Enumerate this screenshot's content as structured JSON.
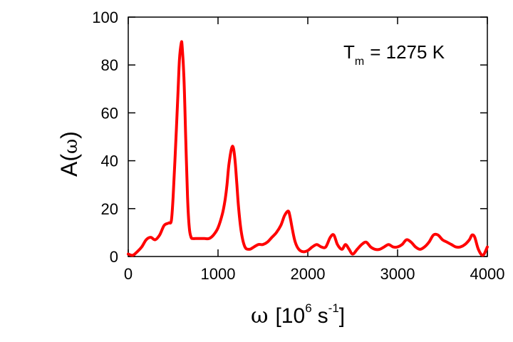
{
  "chart_data": {
    "type": "line",
    "title": "",
    "xlabel": {
      "symbol": "ω",
      "text_open": "[10",
      "superscript": "6",
      "unit": "s",
      "unit_superscript": "-1",
      "text_close": "]"
    },
    "ylabel": {
      "main": "A(",
      "symbol": "ω",
      "close": ")"
    },
    "annotation": {
      "main": "T",
      "subscript": "m",
      "rest": "= 1275 K"
    },
    "xlim": [
      0,
      4000
    ],
    "ylim": [
      0,
      100
    ],
    "xticks": [
      "0",
      "1000",
      "2000",
      "3000",
      "4000"
    ],
    "yticks": [
      "0",
      "20",
      "40",
      "60",
      "80",
      "100"
    ],
    "grid": false,
    "series": [
      {
        "color": "#ff0000",
        "x": [
          0,
          50,
          100,
          150,
          200,
          250,
          300,
          350,
          400,
          450,
          480,
          500,
          520,
          550,
          570,
          590,
          600,
          620,
          640,
          660,
          680,
          700,
          720,
          750,
          800,
          850,
          900,
          950,
          1000,
          1050,
          1080,
          1100,
          1120,
          1150,
          1170,
          1190,
          1210,
          1230,
          1260,
          1300,
          1350,
          1400,
          1450,
          1500,
          1550,
          1600,
          1650,
          1700,
          1740,
          1780,
          1800,
          1830,
          1860,
          1900,
          1950,
          2000,
          2050,
          2100,
          2150,
          2200,
          2250,
          2290,
          2330,
          2380,
          2420,
          2460,
          2500,
          2550,
          2600,
          2650,
          2700,
          2750,
          2800,
          2850,
          2900,
          2950,
          3000,
          3050,
          3100,
          3150,
          3200,
          3250,
          3300,
          3350,
          3400,
          3450,
          3500,
          3550,
          3600,
          3650,
          3700,
          3750,
          3800,
          3830,
          3860,
          3900,
          3950,
          4000
        ],
        "y": [
          1,
          0.5,
          2,
          4,
          7,
          8,
          7,
          9,
          13,
          14,
          15,
          25,
          40,
          65,
          82,
          89,
          88,
          75,
          50,
          25,
          12,
          8,
          7.5,
          7.5,
          7.5,
          7.5,
          7.5,
          9,
          12,
          18,
          24,
          30,
          38,
          45,
          45.5,
          40,
          30,
          20,
          10,
          4,
          3,
          4,
          5,
          5,
          6,
          8,
          10,
          13,
          17,
          19,
          17,
          11,
          6,
          3,
          2,
          2.5,
          4,
          5,
          4,
          4,
          8,
          9,
          5,
          3,
          5,
          3,
          1,
          3,
          5,
          6,
          4,
          3,
          3,
          4,
          5,
          4,
          4,
          5,
          7,
          6,
          4,
          3,
          4,
          6,
          9,
          9,
          7,
          6,
          5,
          4,
          4,
          5,
          7,
          9,
          8,
          3,
          0.5,
          4
        ]
      }
    ]
  }
}
